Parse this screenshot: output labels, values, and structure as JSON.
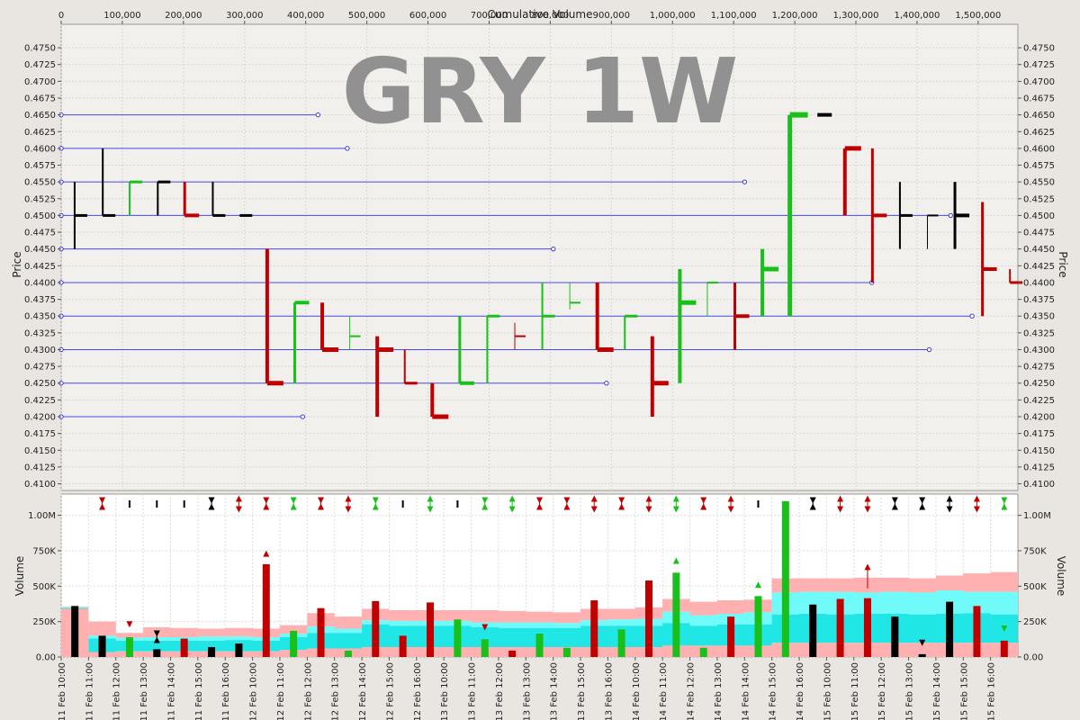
{
  "chart_data": {
    "type": "equivolume",
    "title": "GRY 1W",
    "top_axis": {
      "label": "Cumulative Volume",
      "ticks": [
        "0",
        "100,000",
        "200,000",
        "300,000",
        "400,000",
        "500,000",
        "600,000",
        "700,000",
        "800,000",
        "900,000",
        "1,000,000",
        "1,100,000",
        "1,200,000",
        "1,300,000",
        "1,400,000",
        "1,500,000"
      ],
      "range": [
        0,
        1565000
      ]
    },
    "price_axis": {
      "label": "Price",
      "range": [
        0.409,
        0.4785
      ],
      "ticks": [
        "0.4100",
        "0.4125",
        "0.4150",
        "0.4175",
        "0.4200",
        "0.4225",
        "0.4250",
        "0.4275",
        "0.4300",
        "0.4325",
        "0.4350",
        "0.4375",
        "0.4400",
        "0.4425",
        "0.4450",
        "0.4475",
        "0.4500",
        "0.4525",
        "0.4550",
        "0.4575",
        "0.4600",
        "0.4625",
        "0.4650",
        "0.4675",
        "0.4700",
        "0.4725",
        "0.4750"
      ]
    },
    "volume_axis": {
      "label": "Volume",
      "range": [
        0,
        1150000
      ],
      "ticks": [
        {
          "label": "0.00",
          "value": 0
        },
        {
          "label": "250K",
          "value": 250000
        },
        {
          "label": "500K",
          "value": 500000
        },
        {
          "label": "750K",
          "value": 750000
        },
        {
          "label": "1.00M",
          "value": 1000000
        }
      ]
    },
    "x_labels": [
      "11 Feb 10:00",
      "11 Feb 11:00",
      "11 Feb 12:00",
      "11 Feb 13:00",
      "11 Feb 14:00",
      "11 Feb 15:00",
      "11 Feb 16:00",
      "12 Feb 10:00",
      "12 Feb 11:00",
      "12 Feb 12:00",
      "12 Feb 13:00",
      "12 Feb 14:00",
      "12 Feb 15:00",
      "12 Feb 16:00",
      "13 Feb 10:00",
      "13 Feb 11:00",
      "13 Feb 12:00",
      "13 Feb 13:00",
      "13 Feb 14:00",
      "13 Feb 15:00",
      "13 Feb 16:00",
      "14 Feb 10:00",
      "14 Feb 11:00",
      "14 Feb 12:00",
      "14 Feb 13:00",
      "14 Feb 14:00",
      "14 Feb 15:00",
      "14 Feb 16:00",
      "15 Feb 10:00",
      "15 Feb 11:00",
      "15 Feb 12:00",
      "15 Feb 13:00",
      "15 Feb 14:00",
      "15 Feb 15:00",
      "15 Feb 16:00"
    ],
    "bars": [
      {
        "cv": 22000,
        "high": 0.455,
        "low": 0.445,
        "close": 0.45,
        "color": "black",
        "lw": 2
      },
      {
        "cv": 68000,
        "high": 0.46,
        "low": 0.45,
        "close": 0.45,
        "color": "black",
        "lw": 2
      },
      {
        "cv": 112000,
        "high": 0.455,
        "low": 0.45,
        "close": 0.455,
        "color": "green",
        "lw": 2
      },
      {
        "cv": 158000,
        "high": 0.455,
        "low": 0.45,
        "close": 0.455,
        "color": "black",
        "lw": 2
      },
      {
        "cv": 202000,
        "high": 0.455,
        "low": 0.45,
        "close": 0.45,
        "color": "red",
        "lw": 3
      },
      {
        "cv": 248000,
        "high": 0.455,
        "low": 0.45,
        "close": 0.45,
        "color": "black",
        "lw": 2
      },
      {
        "cv": 292000,
        "high": 0.45,
        "low": 0.45,
        "close": 0.45,
        "color": "black",
        "lw": 2
      },
      {
        "cv": 337000,
        "high": 0.445,
        "low": 0.425,
        "close": 0.425,
        "color": "red",
        "lw": 4
      },
      {
        "cv": 382000,
        "high": 0.437,
        "low": 0.425,
        "close": 0.437,
        "color": "green",
        "lw": 3
      },
      {
        "cv": 427000,
        "high": 0.437,
        "low": 0.43,
        "close": 0.43,
        "color": "red",
        "lw": 4
      },
      {
        "cv": 472000,
        "high": 0.435,
        "low": 0.43,
        "close": 0.432,
        "color": "green",
        "lw": 1
      },
      {
        "cv": 517000,
        "high": 0.432,
        "low": 0.42,
        "close": 0.43,
        "color": "red",
        "lw": 4
      },
      {
        "cv": 562000,
        "high": 0.43,
        "low": 0.425,
        "close": 0.425,
        "color": "red",
        "lw": 2
      },
      {
        "cv": 607000,
        "high": 0.425,
        "low": 0.42,
        "close": 0.42,
        "color": "red",
        "lw": 4
      },
      {
        "cv": 652000,
        "high": 0.435,
        "low": 0.425,
        "close": 0.425,
        "color": "green",
        "lw": 3
      },
      {
        "cv": 697000,
        "high": 0.435,
        "low": 0.425,
        "close": 0.435,
        "color": "green",
        "lw": 2
      },
      {
        "cv": 742000,
        "high": 0.434,
        "low": 0.43,
        "close": 0.432,
        "color": "red",
        "lw": 1
      },
      {
        "cv": 787000,
        "high": 0.44,
        "low": 0.43,
        "close": 0.435,
        "color": "green",
        "lw": 2
      },
      {
        "cv": 832000,
        "high": 0.44,
        "low": 0.436,
        "close": 0.437,
        "color": "green",
        "lw": 1
      },
      {
        "cv": 877000,
        "high": 0.44,
        "low": 0.43,
        "close": 0.43,
        "color": "red",
        "lw": 4
      },
      {
        "cv": 922000,
        "high": 0.435,
        "low": 0.43,
        "close": 0.435,
        "color": "green",
        "lw": 2
      },
      {
        "cv": 967000,
        "high": 0.432,
        "low": 0.42,
        "close": 0.425,
        "color": "red",
        "lw": 4
      },
      {
        "cv": 1012000,
        "high": 0.442,
        "low": 0.425,
        "close": 0.437,
        "color": "green",
        "lw": 4
      },
      {
        "cv": 1057000,
        "high": 0.44,
        "low": 0.435,
        "close": 0.44,
        "color": "green",
        "lw": 1
      },
      {
        "cv": 1102000,
        "high": 0.44,
        "low": 0.43,
        "close": 0.435,
        "color": "red",
        "lw": 3
      },
      {
        "cv": 1147000,
        "high": 0.445,
        "low": 0.435,
        "close": 0.442,
        "color": "green",
        "lw": 4
      },
      {
        "cv": 1192000,
        "high": 0.465,
        "low": 0.435,
        "close": 0.465,
        "color": "green",
        "lw": 5
      },
      {
        "cv": 1237000,
        "high": 0.465,
        "low": 0.465,
        "close": 0.465,
        "color": "black",
        "lw": 3
      },
      {
        "cv": 1282000,
        "high": 0.46,
        "low": 0.45,
        "close": 0.46,
        "color": "red",
        "lw": 4
      },
      {
        "cv": 1327000,
        "high": 0.46,
        "low": 0.44,
        "close": 0.45,
        "color": "red",
        "lw": 3
      },
      {
        "cv": 1372000,
        "high": 0.455,
        "low": 0.445,
        "close": 0.45,
        "color": "black",
        "lw": 2
      },
      {
        "cv": 1417000,
        "high": 0.45,
        "low": 0.445,
        "close": 0.45,
        "color": "black",
        "lw": 1
      },
      {
        "cv": 1462000,
        "high": 0.455,
        "low": 0.445,
        "close": 0.45,
        "color": "black",
        "lw": 3
      },
      {
        "cv": 1507000,
        "high": 0.452,
        "low": 0.435,
        "close": 0.442,
        "color": "red",
        "lw": 3
      },
      {
        "cv": 1552000,
        "high": 0.442,
        "low": 0.44,
        "close": 0.44,
        "color": "red",
        "lw": 2
      }
    ],
    "price_levels": [
      {
        "price": 0.465,
        "cv_end": 420000
      },
      {
        "price": 0.46,
        "cv_end": 468000
      },
      {
        "price": 0.455,
        "cv_end": 1118000
      },
      {
        "price": 0.45,
        "cv_end": 1455000
      },
      {
        "price": 0.445,
        "cv_end": 805000
      },
      {
        "price": 0.44,
        "cv_end": 1326000
      },
      {
        "price": 0.435,
        "cv_end": 1490000
      },
      {
        "price": 0.43,
        "cv_end": 1420000
      },
      {
        "price": 0.425,
        "cv_end": 892000
      },
      {
        "price": 0.42,
        "cv_end": 395000
      }
    ],
    "volumes": [
      {
        "v": 360000,
        "color": "black"
      },
      {
        "v": 150000,
        "color": "black"
      },
      {
        "v": 140000,
        "color": "green"
      },
      {
        "v": 55000,
        "color": "black"
      },
      {
        "v": 130000,
        "color": "red"
      },
      {
        "v": 70000,
        "color": "black"
      },
      {
        "v": 95000,
        "color": "black"
      },
      {
        "v": 655000,
        "color": "red"
      },
      {
        "v": 185000,
        "color": "green"
      },
      {
        "v": 345000,
        "color": "red"
      },
      {
        "v": 45000,
        "color": "green"
      },
      {
        "v": 395000,
        "color": "red"
      },
      {
        "v": 150000,
        "color": "red"
      },
      {
        "v": 385000,
        "color": "red"
      },
      {
        "v": 265000,
        "color": "green"
      },
      {
        "v": 125000,
        "color": "green"
      },
      {
        "v": 45000,
        "color": "red"
      },
      {
        "v": 165000,
        "color": "green"
      },
      {
        "v": 65000,
        "color": "green"
      },
      {
        "v": 400000,
        "color": "red"
      },
      {
        "v": 195000,
        "color": "green"
      },
      {
        "v": 540000,
        "color": "red"
      },
      {
        "v": 595000,
        "color": "green"
      },
      {
        "v": 65000,
        "color": "green"
      },
      {
        "v": 285000,
        "color": "red"
      },
      {
        "v": 430000,
        "color": "green"
      },
      {
        "v": 1100000,
        "color": "green"
      },
      {
        "v": 370000,
        "color": "black"
      },
      {
        "v": 410000,
        "color": "red"
      },
      {
        "v": 415000,
        "color": "red"
      },
      {
        "v": 285000,
        "color": "black"
      },
      {
        "v": 20000,
        "color": "black"
      },
      {
        "v": 390000,
        "color": "black"
      },
      {
        "v": 360000,
        "color": "red"
      },
      {
        "v": 115000,
        "color": "red"
      }
    ],
    "band_upper": [
      355000,
      250000,
      170000,
      210000,
      205000,
      200000,
      205000,
      200000,
      225000,
      310000,
      285000,
      340000,
      330000,
      330000,
      330000,
      330000,
      325000,
      320000,
      315000,
      340000,
      340000,
      350000,
      410000,
      390000,
      400000,
      405000,
      555000,
      555000,
      555000,
      560000,
      560000,
      555000,
      575000,
      590000,
      600000
    ],
    "band_middle": [
      350000,
      150000,
      135000,
      140000,
      140000,
      145000,
      145000,
      140000,
      165000,
      215000,
      200000,
      260000,
      255000,
      255000,
      255000,
      245000,
      245000,
      245000,
      240000,
      260000,
      265000,
      270000,
      320000,
      295000,
      305000,
      315000,
      455000,
      460000,
      460000,
      455000,
      460000,
      455000,
      470000,
      460000,
      460000
    ],
    "band_lower": [
      345000,
      130000,
      115000,
      115000,
      115000,
      115000,
      120000,
      115000,
      140000,
      170000,
      170000,
      230000,
      220000,
      220000,
      220000,
      210000,
      205000,
      205000,
      205000,
      220000,
      220000,
      220000,
      240000,
      220000,
      230000,
      230000,
      300000,
      305000,
      300000,
      305000,
      305000,
      300000,
      305000,
      310000,
      300000
    ],
    "band_base": [
      0,
      0,
      0,
      0,
      0,
      0,
      0,
      0,
      0,
      0,
      0,
      0,
      0,
      0,
      0,
      0,
      0,
      0,
      0,
      0,
      0,
      0,
      0,
      0,
      0,
      0,
      0,
      0,
      0,
      0,
      0,
      0,
      0,
      0,
      0
    ],
    "band_floor": [
      340000,
      35000,
      40000,
      40000,
      40000,
      40000,
      40000,
      40000,
      50000,
      60000,
      60000,
      70000,
      70000,
      70000,
      70000,
      70000,
      70000,
      70000,
      70000,
      70000,
      70000,
      70000,
      80000,
      80000,
      80000,
      80000,
      100000,
      100000,
      100000,
      100000,
      100000,
      100000,
      100000,
      100000,
      100000
    ],
    "top_markers": [
      {
        "type": "both",
        "color": "red"
      },
      {
        "type": "dash",
        "color": "black"
      },
      {
        "type": "dash",
        "color": "black"
      },
      {
        "type": "dash",
        "color": "black"
      },
      {
        "type": "both",
        "color": "black"
      },
      {
        "type": "updown",
        "color": "red"
      },
      {
        "type": "both",
        "color": "red"
      },
      {
        "type": "both",
        "color": "green"
      },
      {
        "type": "both",
        "color": "red"
      },
      {
        "type": "updown",
        "color": "red"
      },
      {
        "type": "both",
        "color": "green"
      },
      {
        "type": "dash",
        "color": "black"
      },
      {
        "type": "updown",
        "color": "green"
      },
      {
        "type": "dash",
        "color": "black"
      },
      {
        "type": "both",
        "color": "green"
      },
      {
        "type": "updown",
        "color": "green"
      },
      {
        "type": "both",
        "color": "red"
      },
      {
        "type": "both",
        "color": "red"
      },
      {
        "type": "updown",
        "color": "red"
      },
      {
        "type": "both",
        "color": "red"
      },
      {
        "type": "updown",
        "color": "red"
      },
      {
        "type": "updown",
        "color": "green"
      },
      {
        "type": "both",
        "color": "red"
      },
      {
        "type": "updown",
        "color": "red"
      },
      {
        "type": "dash",
        "color": "black"
      },
      {
        "type": "up",
        "color": "green"
      },
      {
        "type": "both",
        "color": "black"
      },
      {
        "type": "updown",
        "color": "red"
      },
      {
        "type": "updown",
        "color": "red"
      },
      {
        "type": "both",
        "color": "black"
      },
      {
        "type": "both",
        "color": "black"
      },
      {
        "type": "updown",
        "color": "black"
      },
      {
        "type": "updown",
        "color": "red"
      },
      {
        "type": "both",
        "color": "green"
      }
    ],
    "vol_markers": [
      {
        "bar": 2,
        "v": 230000,
        "type": "down",
        "color": "red"
      },
      {
        "bar": 3,
        "v": 140000,
        "type": "both",
        "color": "black"
      },
      {
        "bar": 7,
        "v": 730000,
        "type": "up",
        "color": "red"
      },
      {
        "bar": 15,
        "v": 210000,
        "type": "down",
        "color": "red"
      },
      {
        "bar": 17,
        "v": 130000,
        "type": "down",
        "color": "green"
      },
      {
        "bar": 22,
        "v": 680000,
        "type": "up",
        "color": "green"
      },
      {
        "bar": 25,
        "v": 510000,
        "type": "up",
        "color": "green"
      },
      {
        "bar": 29,
        "v": 560000,
        "type": "uparrow",
        "color": "red"
      },
      {
        "bar": 31,
        "v": 100000,
        "type": "down",
        "color": "black"
      },
      {
        "bar": 34,
        "v": 200000,
        "type": "down",
        "color": "green"
      }
    ]
  }
}
